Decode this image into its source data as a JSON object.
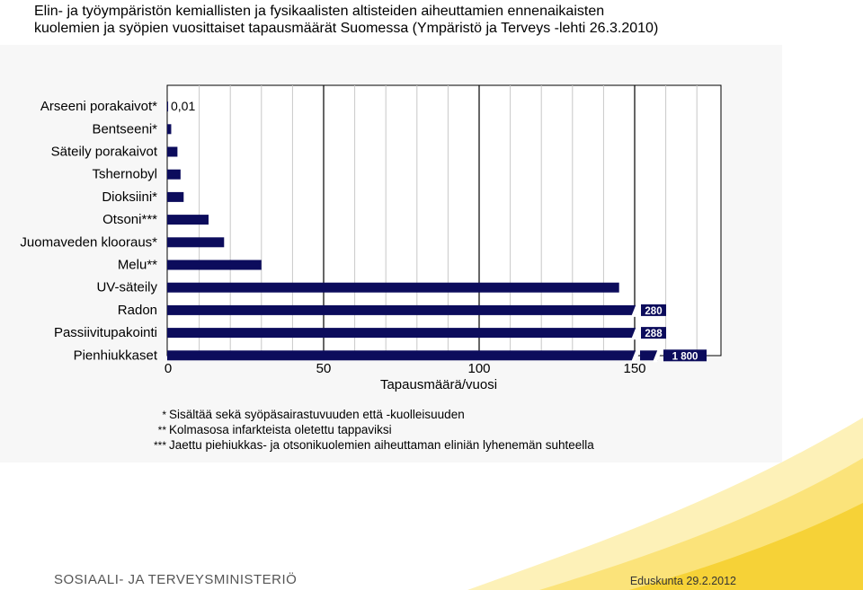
{
  "title": {
    "line1": "Elin- ja työympäristön kemiallisten ja fysikaalisten altisteiden aiheuttamien ennenaikaisten",
    "line2": "kuolemien ja syöpien vuosittaiset tapausmäärät Suomessa (Ympäristö ja Terveys -lehti 26.3.2010)"
  },
  "chart_data": {
    "type": "bar",
    "orientation": "horizontal",
    "categories": [
      "Arseeni porakaivot*",
      "Bentseeni*",
      "Säteily porakaivot",
      "Tshernobyl",
      "Dioksiini*",
      "Otsoni***",
      "Juomaveden klooraus*",
      "Melu**",
      "UV-säteily",
      "Radon",
      "Passiivitupakointi",
      "Pienhiukkaset"
    ],
    "values": [
      0.01,
      1,
      3,
      4,
      5,
      13,
      18,
      30,
      145,
      280,
      288,
      1800
    ],
    "value_labels": [
      "0,01",
      "",
      "",
      "",
      "",
      "",
      "",
      "",
      "",
      "280",
      "288",
      "1 800"
    ],
    "xlabel": "Tapausmäärä/vuosi",
    "ylabel": "",
    "xlim": [
      0,
      178
    ],
    "xticks": [
      "0",
      "50",
      "100",
      "150"
    ],
    "axis_break_at": 150,
    "grid": true,
    "bar_color": "#0c0c5c"
  },
  "footnotes": [
    {
      "mark": "*",
      "text": "Sisältää sekä syöpäsairastuvuuden että -kuolleisuuden"
    },
    {
      "mark": "**",
      "text": "Kolmasosa infarkteista oletettu tappaviksi"
    },
    {
      "mark": "***",
      "text": "Jaettu piehiukkas- ja otsonikuolemien aiheuttaman eliniän lyhenemän suhteella"
    }
  ],
  "footer": {
    "logo_text": "SOSIAALI- JA TERVEYSMINISTERIÖ",
    "date_text": "Eduskunta 29.2.2012"
  },
  "colors": {
    "swoosh_light": "#fdf1b8",
    "swoosh_mid": "#fbe37a",
    "swoosh_dark": "#f6d237"
  }
}
